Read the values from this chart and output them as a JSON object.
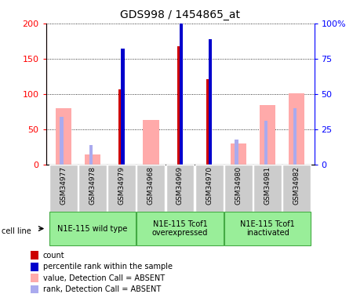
{
  "title": "GDS998 / 1454865_at",
  "samples": [
    "GSM34977",
    "GSM34978",
    "GSM34979",
    "GSM34968",
    "GSM34969",
    "GSM34970",
    "GSM34980",
    "GSM34981",
    "GSM34982"
  ],
  "count": [
    0,
    0,
    107,
    0,
    168,
    121,
    0,
    0,
    0
  ],
  "percentile_rank": [
    0,
    0,
    82,
    0,
    100,
    89,
    0,
    0,
    0
  ],
  "value_absent": [
    80,
    15,
    0,
    63,
    0,
    0,
    30,
    84,
    101
  ],
  "rank_absent": [
    68,
    0,
    0,
    0,
    0,
    0,
    0,
    62,
    80
  ],
  "rank_absent_small": [
    0,
    28,
    0,
    0,
    0,
    0,
    36,
    0,
    0
  ],
  "groups": [
    {
      "label": "N1E-115 wild type",
      "indices": [
        0,
        1,
        2
      ]
    },
    {
      "label": "N1E-115 Tcof1\noverexpressed",
      "indices": [
        3,
        4,
        5
      ]
    },
    {
      "label": "N1E-115 Tcof1\ninactivated",
      "indices": [
        6,
        7,
        8
      ]
    }
  ],
  "ylim_left": [
    0,
    200
  ],
  "ylim_right": [
    0,
    100
  ],
  "yticks_left": [
    0,
    50,
    100,
    150,
    200
  ],
  "yticks_right": [
    0,
    25,
    50,
    75,
    100
  ],
  "ytick_labels_right": [
    "0",
    "25",
    "50",
    "75",
    "100%"
  ],
  "color_count": "#cc0000",
  "color_percentile": "#0000cc",
  "color_value_absent": "#ffaaaa",
  "color_rank_absent": "#aaaaee",
  "sample_bg_color": "#cccccc",
  "cell_line_label": "cell line",
  "legend_items": [
    {
      "color": "#cc0000",
      "label": "count"
    },
    {
      "color": "#0000cc",
      "label": "percentile rank within the sample"
    },
    {
      "color": "#ffaaaa",
      "label": "value, Detection Call = ABSENT"
    },
    {
      "color": "#aaaaee",
      "label": "rank, Detection Call = ABSENT"
    }
  ]
}
